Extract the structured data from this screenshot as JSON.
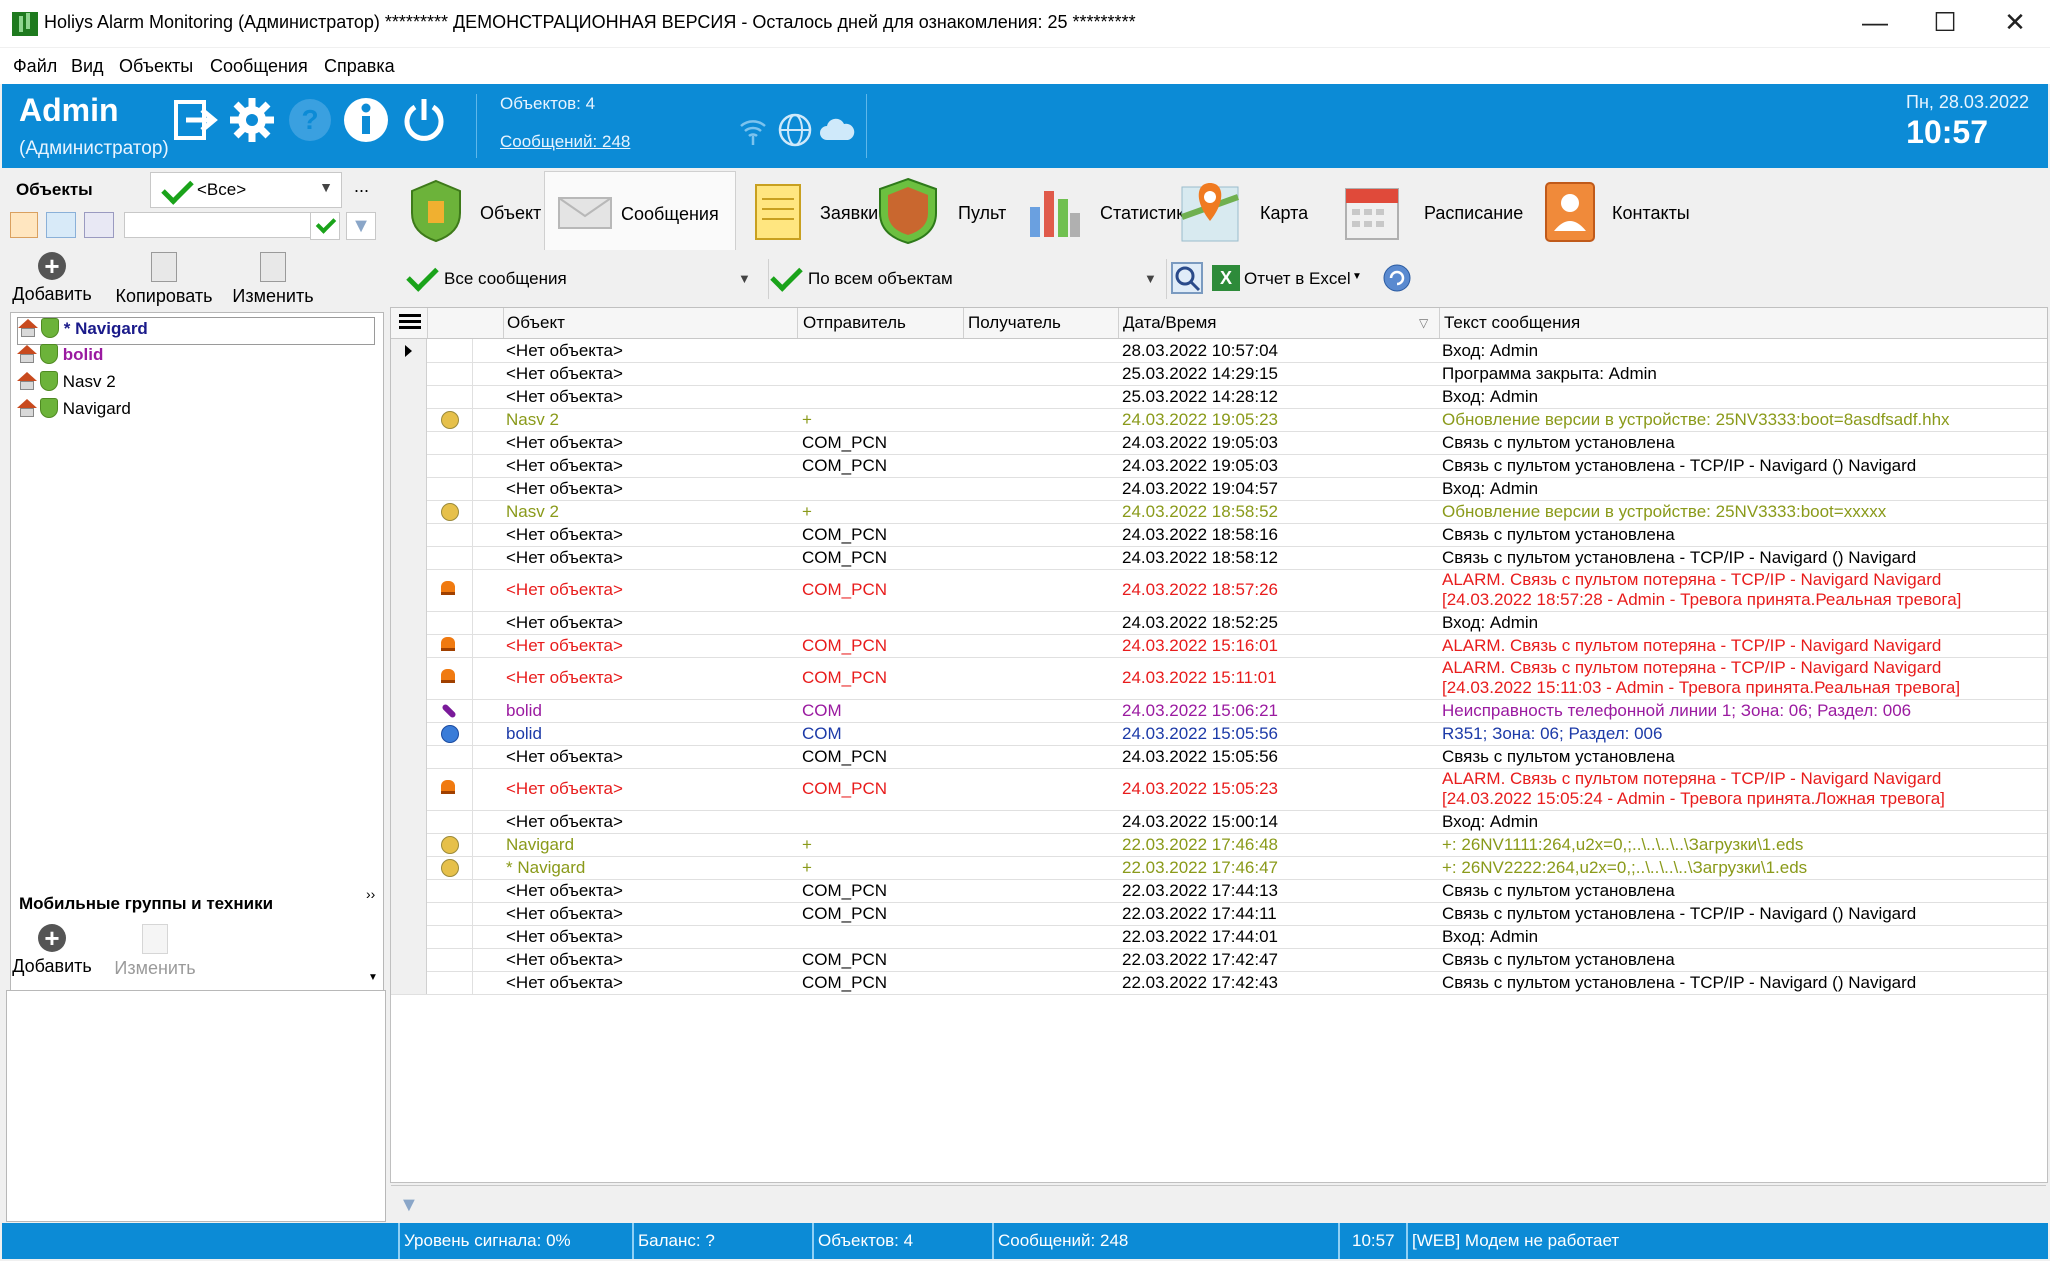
{
  "window": {
    "title": "Holiys Alarm Monitoring (Администратор) ********* ДЕМОНСТРАЦИОННАЯ ВЕРСИЯ - Осталось дней для ознакомления: 25 *********",
    "minimize": "—",
    "maximize": "☐",
    "close": "✕"
  },
  "menu": [
    "Файл",
    "Вид",
    "Объекты",
    "Сообщения",
    "Справка"
  ],
  "header": {
    "user": "Admin",
    "role": "(Администратор)",
    "objects": "Объектов: 4",
    "messages": "Сообщений: 248",
    "date": "Пн, 28.03.2022",
    "time": "10:57",
    "accent": "#0c8bd6"
  },
  "left": {
    "objects_label": "Объекты",
    "filter_value": "<Все>",
    "more": "...",
    "add": "Добавить",
    "copy": "Копировать",
    "edit": "Изменить",
    "tree": [
      {
        "label": "* Navigard",
        "style": "selected"
      },
      {
        "label": "bolid",
        "style": "purple"
      },
      {
        "label": "Nasv 2",
        "style": "normal"
      },
      {
        "label": "Navigard",
        "style": "normal"
      }
    ],
    "mobile_label": "Мобильные группы и техники",
    "mobile_add": "Добавить",
    "mobile_edit": "Изменить"
  },
  "tabs": [
    {
      "label": "Объект",
      "icon": "shield-icon"
    },
    {
      "label": "Сообщения",
      "icon": "envelope-icon"
    },
    {
      "label": "Заявки",
      "icon": "notepad-icon"
    },
    {
      "label": "Пульт",
      "icon": "console-shield-icon"
    },
    {
      "label": "Статистика",
      "icon": "bar-chart-icon"
    },
    {
      "label": "Карта",
      "icon": "map-pin-icon"
    },
    {
      "label": "Расписание",
      "icon": "calendar-icon"
    },
    {
      "label": "Контакты",
      "icon": "contact-icon"
    }
  ],
  "filters": {
    "messages": "Все сообщения",
    "objects": "По всем объектам",
    "excel": "Отчет в Excel"
  },
  "columns": [
    "Объект",
    "Отправитель",
    "Получатель",
    "Дата/Время",
    "Текст сообщения"
  ],
  "rows": [
    {
      "icon": "",
      "obj": "<Нет объекта>",
      "snd": "",
      "dt": "28.03.2022 10:57:04",
      "txt": "Вход: Admin",
      "txt2": "",
      "st": "default"
    },
    {
      "icon": "",
      "obj": "<Нет объекта>",
      "snd": "",
      "dt": "25.03.2022 14:29:15",
      "txt": "Программа закрыта: Admin",
      "txt2": "",
      "st": "default"
    },
    {
      "icon": "",
      "obj": "<Нет объекта>",
      "snd": "",
      "dt": "25.03.2022 14:28:12",
      "txt": "Вход: Admin",
      "txt2": "",
      "st": "default"
    },
    {
      "icon": "dot-y",
      "obj": "Nasv 2",
      "snd": "+",
      "dt": "24.03.2022 19:05:23",
      "txt": "Обновление версии в устройстве: 25NV3333:boot=8asdfsadf.hhx",
      "txt2": "",
      "st": "upd"
    },
    {
      "icon": "",
      "obj": "<Нет объекта>",
      "snd": "COM_PCN",
      "dt": "24.03.2022 19:05:03",
      "txt": "Связь с пультом установлена",
      "txt2": "",
      "st": "default"
    },
    {
      "icon": "",
      "obj": "<Нет объекта>",
      "snd": "COM_PCN",
      "dt": "24.03.2022 19:05:03",
      "txt": "Связь с пультом установлена - TCP/IP - Navigard () Navigard",
      "txt2": "",
      "st": "default"
    },
    {
      "icon": "",
      "obj": "<Нет объекта>",
      "snd": "",
      "dt": "24.03.2022 19:04:57",
      "txt": "Вход: Admin",
      "txt2": "",
      "st": "default"
    },
    {
      "icon": "dot-y",
      "obj": "Nasv 2",
      "snd": "+",
      "dt": "24.03.2022 18:58:52",
      "txt": "Обновление версии в устройстве: 25NV3333:boot=xxxxx",
      "txt2": "",
      "st": "upd"
    },
    {
      "icon": "",
      "obj": "<Нет объекта>",
      "snd": "COM_PCN",
      "dt": "24.03.2022 18:58:16",
      "txt": "Связь с пультом установлена",
      "txt2": "",
      "st": "default"
    },
    {
      "icon": "",
      "obj": "<Нет объекта>",
      "snd": "COM_PCN",
      "dt": "24.03.2022 18:58:12",
      "txt": "Связь с пультом установлена - TCP/IP - Navigard () Navigard",
      "txt2": "",
      "st": "default"
    },
    {
      "icon": "siren",
      "obj": "<Нет объекта>",
      "snd": "COM_PCN",
      "dt": "24.03.2022 18:57:26",
      "txt": "ALARM. Связь с пультом потеряна - TCP/IP - Navigard  Navigard",
      "txt2": "[24.03.2022 18:57:28 - Admin - Тревога принята.Реальная тревога]",
      "st": "alarm"
    },
    {
      "icon": "",
      "obj": "<Нет объекта>",
      "snd": "",
      "dt": "24.03.2022 18:52:25",
      "txt": "Вход: Admin",
      "txt2": "",
      "st": "default"
    },
    {
      "icon": "siren",
      "obj": "<Нет объекта>",
      "snd": "COM_PCN",
      "dt": "24.03.2022 15:16:01",
      "txt": "ALARM. Связь с пультом потеряна - TCP/IP - Navigard  Navigard",
      "txt2": "",
      "st": "alarm"
    },
    {
      "icon": "siren",
      "obj": "<Нет объекта>",
      "snd": "COM_PCN",
      "dt": "24.03.2022 15:11:01",
      "txt": "ALARM. Связь с пультом потеряна - TCP/IP - Navigard  Navigard",
      "txt2": "[24.03.2022 15:11:03 - Admin - Тревога принята.Реальная тревога]",
      "st": "alarm"
    },
    {
      "icon": "wrench",
      "obj": "bolid",
      "snd": "COM",
      "dt": "24.03.2022 15:06:21",
      "txt": "Неисправность телефонной линии 1; Зона: 06; Раздел: 006",
      "txt2": "",
      "st": "fault"
    },
    {
      "icon": "dot-b",
      "obj": "bolid",
      "snd": "COM",
      "dt": "24.03.2022 15:05:56",
      "txt": "R351; Зона: 06; Раздел: 006",
      "txt2": "",
      "st": "info"
    },
    {
      "icon": "",
      "obj": "<Нет объекта>",
      "snd": "COM_PCN",
      "dt": "24.03.2022 15:05:56",
      "txt": "Связь с пультом установлена",
      "txt2": "",
      "st": "default"
    },
    {
      "icon": "siren",
      "obj": "<Нет объекта>",
      "snd": "COM_PCN",
      "dt": "24.03.2022 15:05:23",
      "txt": "ALARM. Связь с пультом потеряна - TCP/IP - Navigard  Navigard",
      "txt2": "[24.03.2022 15:05:24 - Admin - Тревога принята.Ложная тревога]",
      "st": "alarm"
    },
    {
      "icon": "",
      "obj": "<Нет объекта>",
      "snd": "",
      "dt": "24.03.2022 15:00:14",
      "txt": "Вход: Admin",
      "txt2": "",
      "st": "default"
    },
    {
      "icon": "dot-y",
      "obj": "Navigard",
      "snd": "+",
      "dt": "22.03.2022 17:46:48",
      "txt": "+: 26NV1111:264,u2x=0,;..\\..\\..\\..\\Загрузки\\1.eds",
      "txt2": "",
      "st": "upd"
    },
    {
      "icon": "dot-y",
      "obj": "* Navigard",
      "snd": "+",
      "dt": "22.03.2022 17:46:47",
      "txt": "+: 26NV2222:264,u2x=0,;..\\..\\..\\..\\Загрузки\\1.eds",
      "txt2": "",
      "st": "upd"
    },
    {
      "icon": "",
      "obj": "<Нет объекта>",
      "snd": "COM_PCN",
      "dt": "22.03.2022 17:44:13",
      "txt": "Связь с пультом установлена",
      "txt2": "",
      "st": "default"
    },
    {
      "icon": "",
      "obj": "<Нет объекта>",
      "snd": "COM_PCN",
      "dt": "22.03.2022 17:44:11",
      "txt": "Связь с пультом установлена - TCP/IP - Navigard () Navigard",
      "txt2": "",
      "st": "default"
    },
    {
      "icon": "",
      "obj": "<Нет объекта>",
      "snd": "",
      "dt": "22.03.2022 17:44:01",
      "txt": "Вход: Admin",
      "txt2": "",
      "st": "default"
    },
    {
      "icon": "",
      "obj": "<Нет объекта>",
      "snd": "COM_PCN",
      "dt": "22.03.2022 17:42:47",
      "txt": "Связь с пультом установлена",
      "txt2": "",
      "st": "default"
    },
    {
      "icon": "",
      "obj": "<Нет объекта>",
      "snd": "COM_PCN",
      "dt": "22.03.2022 17:42:43",
      "txt": "Связь с пультом установлена - TCP/IP - Navigard () Navigard",
      "txt2": "",
      "st": "default"
    }
  ],
  "status": {
    "signal": "Уровень сигнала: 0%",
    "balance": "Баланс: ?",
    "objects": "Объектов: 4",
    "messages": "Сообщений: 248",
    "time": "10:57",
    "web": "[WEB] Модем не работает"
  }
}
